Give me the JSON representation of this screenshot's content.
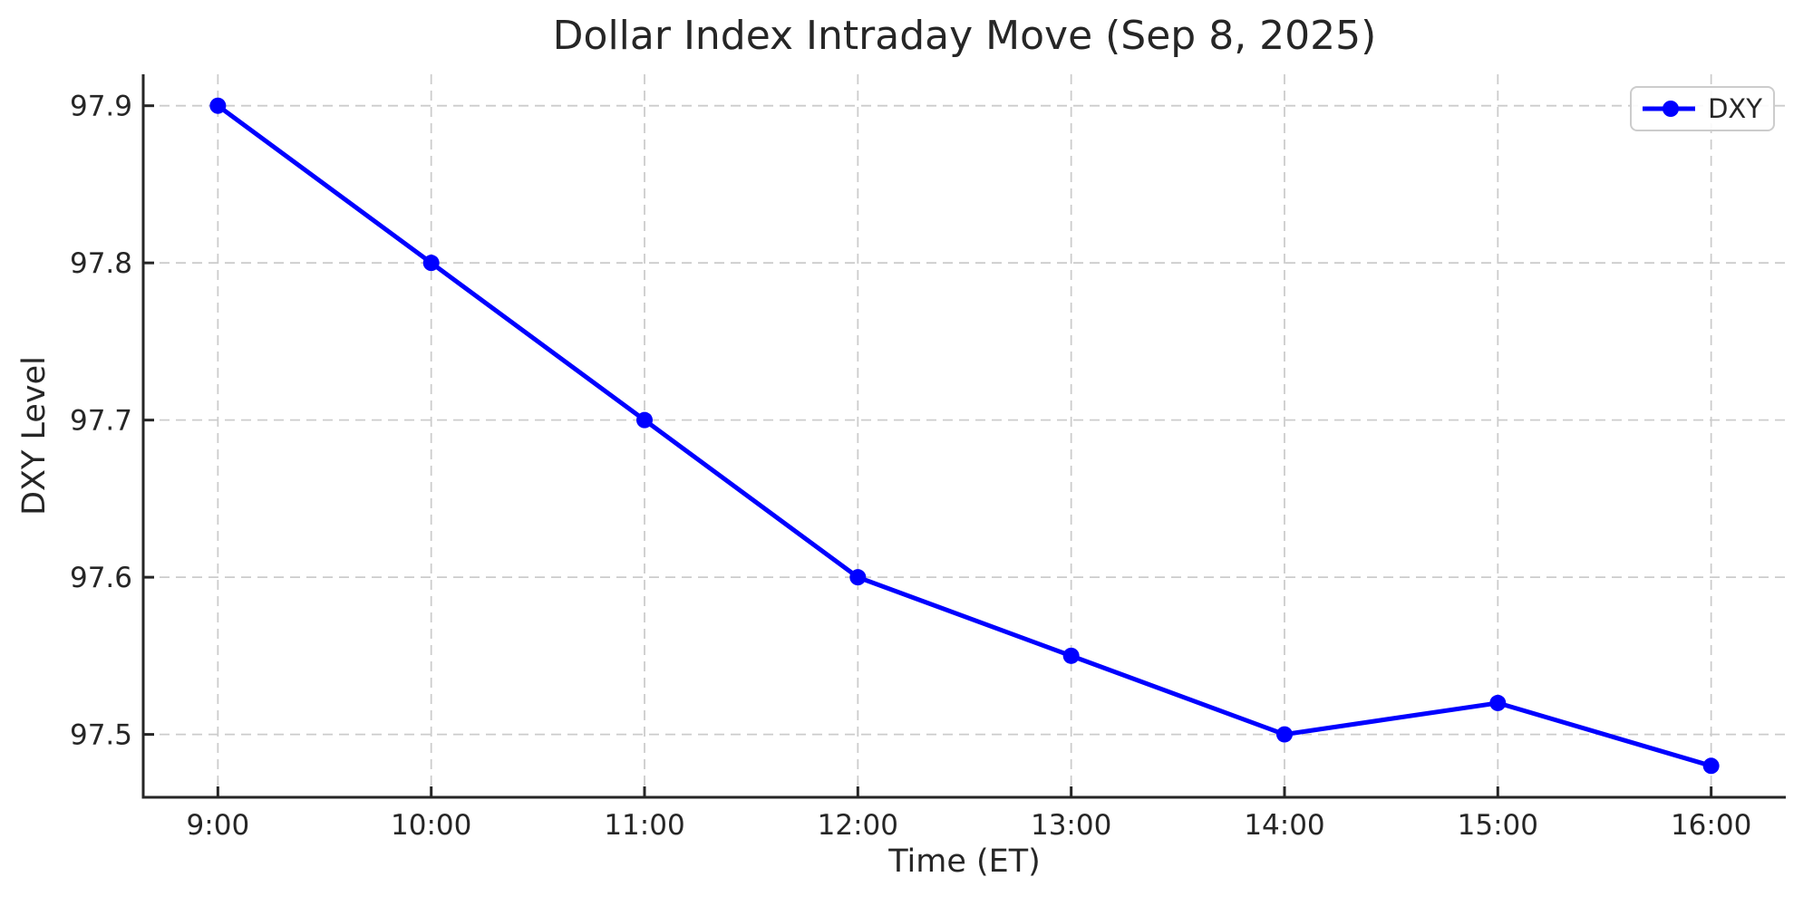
{
  "chart_data": {
    "type": "line",
    "title": "Dollar Index Intraday Move (Sep 8, 2025)",
    "xlabel": "Time (ET)",
    "ylabel": "DXY Level",
    "categories": [
      "9:00",
      "10:00",
      "11:00",
      "12:00",
      "13:00",
      "14:00",
      "15:00",
      "16:00"
    ],
    "series": [
      {
        "name": "DXY",
        "values": [
          97.9,
          97.8,
          97.7,
          97.6,
          97.55,
          97.5,
          97.52,
          97.48
        ],
        "color": "#0000ff",
        "marker": "circle"
      }
    ],
    "yticks": [
      97.5,
      97.6,
      97.7,
      97.8,
      97.9
    ],
    "ytick_labels": [
      "97.5",
      "97.6",
      "97.7",
      "97.8",
      "97.9"
    ],
    "ylim": [
      97.46,
      97.92
    ],
    "grid": true,
    "grid_style": "dashed",
    "legend_position": "upper right"
  },
  "colors": {
    "grid": "#cccccc",
    "spine": "#262626",
    "text": "#262626",
    "background": "#ffffff",
    "legend_border": "#cccccc"
  }
}
